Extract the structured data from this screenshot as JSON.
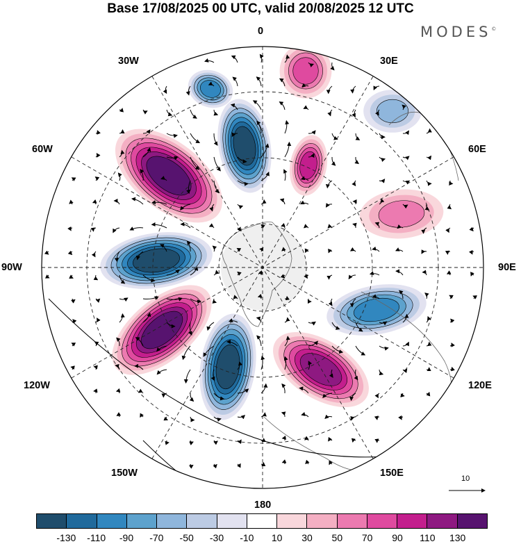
{
  "title": "Base 17/08/2025 00 UTC, valid 20/08/2025 12 UTC",
  "brand": "MODES",
  "brand_mark": "©",
  "longitude_labels": {
    "lon_0": "0",
    "lon_30e": "30E",
    "lon_60e": "60E",
    "lon_90e": "90E",
    "lon_120e": "120E",
    "lon_150e": "150E",
    "lon_180": "180",
    "lon_150w": "150W",
    "lon_120w": "120W",
    "lon_90w": "90W",
    "lon_60w": "60W",
    "lon_30w": "30W"
  },
  "reference_vector": {
    "label": "10",
    "magnitude": 10
  },
  "colorbar": {
    "colors": [
      "#1f4d6c",
      "#206a9c",
      "#3187bf",
      "#5da2cd",
      "#8fb6dc",
      "#bccbe4",
      "#e2e2f0",
      "#ffffff",
      "#f9d7dc",
      "#f4afc3",
      "#ec7ab0",
      "#df4a9f",
      "#c31e8d",
      "#8e1981",
      "#57136f"
    ],
    "ticks": [
      "-130",
      "-110",
      "-90",
      "-70",
      "-50",
      "-30",
      "-10",
      "10",
      "30",
      "50",
      "70",
      "90",
      "110",
      "130"
    ]
  },
  "chart_data": {
    "type": "heatmap",
    "projection": "north polar stereographic",
    "title": "Base 17/08/2025 00 UTC, valid 20/08/2025 12 UTC",
    "field": "anomaly with wind vectors",
    "levels": [
      -130,
      -110,
      -90,
      -70,
      -50,
      -30,
      -10,
      10,
      30,
      50,
      70,
      90,
      110,
      130
    ],
    "anomaly_centers": [
      {
        "longitude": "10W",
        "sign": "negative",
        "peak": -130
      },
      {
        "longitude": "35W",
        "sign": "negative",
        "peak": -90
      },
      {
        "longitude": "55W",
        "sign": "positive",
        "peak": 130
      },
      {
        "longitude": "90W",
        "sign": "negative",
        "peak": -130
      },
      {
        "longitude": "125W",
        "sign": "positive",
        "peak": 130
      },
      {
        "longitude": "170W",
        "sign": "negative",
        "peak": -130
      },
      {
        "longitude": "145E",
        "sign": "positive",
        "peak": 110
      },
      {
        "longitude": "95E",
        "sign": "negative",
        "peak": -90
      },
      {
        "longitude": "65E",
        "sign": "positive",
        "peak": 50
      },
      {
        "longitude": "40E",
        "sign": "negative",
        "peak": -50
      },
      {
        "longitude": "15E",
        "sign": "positive",
        "peak": 90
      },
      {
        "longitude": "5E",
        "sign": "positive",
        "peak": 70
      }
    ]
  }
}
